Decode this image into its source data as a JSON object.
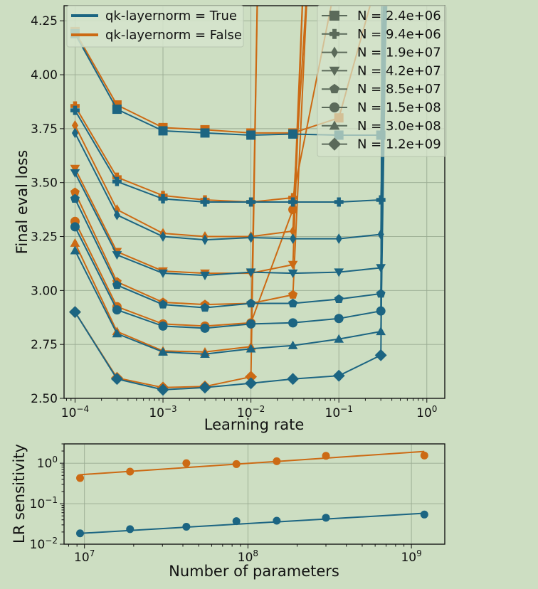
{
  "colors": {
    "true": "#1c6582",
    "false": "#cc6a14",
    "marker_legend": "#5b6a5a"
  },
  "chart_data": [
    {
      "type": "line",
      "xscale": "log",
      "xlabel": "Learning rate",
      "ylabel": "Final eval loss",
      "xlim": [
        7.5e-05,
        1.6
      ],
      "ylim": [
        2.5,
        4.32
      ],
      "grid": true,
      "legend_location": "upper-left",
      "xticks": [
        {
          "value": 0.0001,
          "base": "10",
          "exp": "−4"
        },
        {
          "value": 0.001,
          "base": "10",
          "exp": "−3"
        },
        {
          "value": 0.01,
          "base": "10",
          "exp": "−2"
        },
        {
          "value": 0.1,
          "base": "10",
          "exp": "−1"
        },
        {
          "value": 1,
          "base": "10",
          "exp": "0"
        }
      ],
      "yticks": [
        {
          "value": 2.5,
          "label": "2.50"
        },
        {
          "value": 2.75,
          "label": "2.75"
        },
        {
          "value": 3.0,
          "label": "3.00"
        },
        {
          "value": 3.25,
          "label": "3.25"
        },
        {
          "value": 3.5,
          "label": "3.50"
        },
        {
          "value": 3.75,
          "label": "3.75"
        },
        {
          "value": 4.0,
          "label": "4.00"
        },
        {
          "value": 4.25,
          "label": "4.25"
        }
      ],
      "x": [
        0.0001,
        0.0003,
        0.001,
        0.003,
        0.01,
        0.03,
        0.1,
        0.3
      ],
      "legend": [
        {
          "key": "true",
          "label": "qk-layernorm = True"
        },
        {
          "key": "false",
          "label": "qk-layernorm = False"
        }
      ],
      "series": [
        {
          "size": "N = 2.4e+06",
          "marker": "square",
          "qk_layernorm": true,
          "x": [
            0.0001,
            0.0003,
            0.001,
            0.003,
            0.01,
            0.03,
            0.1,
            0.3,
            0.33
          ],
          "values": [
            4.19,
            3.84,
            3.74,
            3.73,
            3.72,
            3.725,
            3.72,
            3.72,
            4.5
          ]
        },
        {
          "size": "N = 2.4e+06",
          "marker": "square",
          "qk_layernorm": false,
          "x": [
            0.0001,
            0.0003,
            0.001,
            0.003,
            0.01,
            0.03,
            0.1,
            0.3
          ],
          "values": [
            4.2,
            3.86,
            3.755,
            3.745,
            3.73,
            3.73,
            3.8,
            4.5
          ]
        },
        {
          "size": "N = 9.4e+06",
          "marker": "plus",
          "qk_layernorm": true,
          "x": [
            0.0001,
            0.0003,
            0.001,
            0.003,
            0.01,
            0.03,
            0.1,
            0.3,
            0.36
          ],
          "values": [
            3.835,
            3.505,
            3.425,
            3.41,
            3.41,
            3.41,
            3.41,
            3.42,
            4.5
          ]
        },
        {
          "size": "N = 9.4e+06",
          "marker": "plus",
          "qk_layernorm": false,
          "x": [
            0.0001,
            0.0003,
            0.001,
            0.003,
            0.01,
            0.03,
            0.1
          ],
          "values": [
            3.855,
            3.525,
            3.44,
            3.42,
            3.41,
            3.43,
            4.5
          ]
        },
        {
          "size": "N = 1.9e+07",
          "marker": "thin_diamond",
          "qk_layernorm": true,
          "x": [
            0.0001,
            0.0003,
            0.001,
            0.003,
            0.01,
            0.03,
            0.1,
            0.3,
            0.33
          ],
          "values": [
            3.73,
            3.35,
            3.25,
            3.235,
            3.245,
            3.24,
            3.24,
            3.26,
            4.5
          ]
        },
        {
          "size": "N = 1.9e+07",
          "marker": "thin_diamond",
          "qk_layernorm": false,
          "x": [
            0.0001,
            0.0003,
            0.001,
            0.003,
            0.01,
            0.03,
            0.04
          ],
          "values": [
            3.765,
            3.375,
            3.265,
            3.25,
            3.25,
            3.275,
            4.5
          ]
        },
        {
          "size": "N = 4.2e+07",
          "marker": "triangle_down",
          "qk_layernorm": true,
          "x": [
            0.0001,
            0.0003,
            0.001,
            0.003,
            0.01,
            0.03,
            0.1,
            0.3,
            0.34
          ],
          "values": [
            3.545,
            3.165,
            3.08,
            3.07,
            3.085,
            3.08,
            3.085,
            3.105,
            4.5
          ]
        },
        {
          "size": "N = 4.2e+07",
          "marker": "triangle_down",
          "qk_layernorm": false,
          "x": [
            0.0001,
            0.0003,
            0.001,
            0.003,
            0.01,
            0.03,
            0.04
          ],
          "values": [
            3.565,
            3.18,
            3.09,
            3.08,
            3.08,
            3.12,
            4.5
          ]
        },
        {
          "size": "N = 8.5e+07",
          "marker": "pentagon",
          "qk_layernorm": true,
          "x": [
            0.0001,
            0.0003,
            0.001,
            0.003,
            0.01,
            0.03,
            0.1,
            0.3,
            0.34
          ],
          "values": [
            3.425,
            3.025,
            2.935,
            2.92,
            2.94,
            2.94,
            2.96,
            2.985,
            4.5
          ]
        },
        {
          "size": "N = 8.5e+07",
          "marker": "pentagon",
          "qk_layernorm": false,
          "x": [
            0.0001,
            0.0003,
            0.001,
            0.003,
            0.01,
            0.03,
            0.045
          ],
          "values": [
            3.455,
            3.04,
            2.945,
            2.935,
            2.94,
            2.98,
            4.5
          ]
        },
        {
          "size": "N = 1.5e+08",
          "marker": "circle",
          "qk_layernorm": true,
          "x": [
            0.0001,
            0.0003,
            0.001,
            0.003,
            0.01,
            0.03,
            0.1,
            0.3,
            0.31
          ],
          "values": [
            3.295,
            2.91,
            2.835,
            2.825,
            2.845,
            2.85,
            2.87,
            2.905,
            4.5
          ]
        },
        {
          "size": "N = 1.5e+08",
          "marker": "circle",
          "qk_layernorm": false,
          "x": [
            0.0001,
            0.0003,
            0.001,
            0.003,
            0.01,
            0.03,
            0.045
          ],
          "values": [
            3.32,
            2.925,
            2.845,
            2.835,
            2.85,
            3.375,
            4.5
          ]
        },
        {
          "size": "N = 3.0e+08",
          "marker": "triangle_up",
          "qk_layernorm": true,
          "x": [
            0.0001,
            0.0003,
            0.001,
            0.003,
            0.01,
            0.03,
            0.1,
            0.3,
            0.35
          ],
          "values": [
            3.185,
            2.8,
            2.715,
            2.705,
            2.73,
            2.745,
            2.775,
            2.81,
            4.5
          ]
        },
        {
          "size": "N = 3.0e+08",
          "marker": "triangle_up",
          "qk_layernorm": false,
          "x": [
            0.0001,
            0.0003,
            0.001,
            0.003,
            0.01,
            0.012
          ],
          "values": [
            3.22,
            2.81,
            2.72,
            2.715,
            2.74,
            4.5
          ]
        },
        {
          "size": "N = 1.2e+09",
          "marker": "diamond",
          "qk_layernorm": true,
          "x": [
            0.0001,
            0.0003,
            0.001,
            0.003,
            0.01,
            0.03,
            0.1,
            0.3,
            0.33
          ],
          "values": [
            2.9,
            2.59,
            2.54,
            2.55,
            2.57,
            2.59,
            2.605,
            2.7,
            4.5
          ]
        },
        {
          "size": "N = 1.2e+09",
          "marker": "diamond",
          "qk_layernorm": false,
          "x": [
            0.0001,
            0.0003,
            0.001,
            0.003,
            0.01,
            0.012
          ],
          "values": [
            2.9,
            2.595,
            2.55,
            2.555,
            2.6,
            4.5
          ]
        }
      ],
      "marker_legend": [
        {
          "label": "N = 2.4e+06",
          "marker": "square"
        },
        {
          "label": "N = 9.4e+06",
          "marker": "plus"
        },
        {
          "label": "N = 1.9e+07",
          "marker": "thin_diamond"
        },
        {
          "label": "N = 4.2e+07",
          "marker": "triangle_down"
        },
        {
          "label": "N = 8.5e+07",
          "marker": "pentagon"
        },
        {
          "label": "N = 1.5e+08",
          "marker": "circle"
        },
        {
          "label": "N = 3.0e+08",
          "marker": "triangle_up"
        },
        {
          "label": "N = 1.2e+09",
          "marker": "diamond"
        }
      ]
    },
    {
      "type": "scatter",
      "xscale": "log",
      "yscale": "log",
      "xlabel": "Number of parameters",
      "ylabel": "LR sensitivity",
      "xlim": [
        7500000,
        1600000000
      ],
      "ylim": [
        0.01,
        3.0
      ],
      "grid": true,
      "xticks": [
        {
          "value": 10000000,
          "base": "10",
          "exp": "7"
        },
        {
          "value": 100000000,
          "base": "10",
          "exp": "8"
        },
        {
          "value": 1000000000,
          "base": "10",
          "exp": "9"
        }
      ],
      "yticks": [
        {
          "value": 0.01,
          "base": "10",
          "exp": "−2"
        },
        {
          "value": 0.1,
          "base": "10",
          "exp": "−1"
        },
        {
          "value": 1,
          "base": "10",
          "exp": "0"
        }
      ],
      "series": [
        {
          "qk_layernorm": true,
          "x": [
            9400000,
            19000000,
            42000000,
            85000000,
            150000000,
            300000000,
            1200000000
          ],
          "values": [
            0.0185,
            0.0235,
            0.027,
            0.037,
            0.038,
            0.045,
            0.054
          ],
          "fit": {
            "x": [
              9400000,
              1200000000
            ],
            "values": [
              0.0185,
              0.058
            ]
          }
        },
        {
          "qk_layernorm": false,
          "x": [
            9400000,
            19000000,
            42000000,
            85000000,
            150000000,
            300000000,
            1200000000
          ],
          "values": [
            0.43,
            0.62,
            1.0,
            0.95,
            1.12,
            1.52,
            1.55
          ],
          "fit": {
            "x": [
              9400000,
              1200000000
            ],
            "values": [
              0.52,
              1.95
            ]
          }
        }
      ]
    }
  ]
}
